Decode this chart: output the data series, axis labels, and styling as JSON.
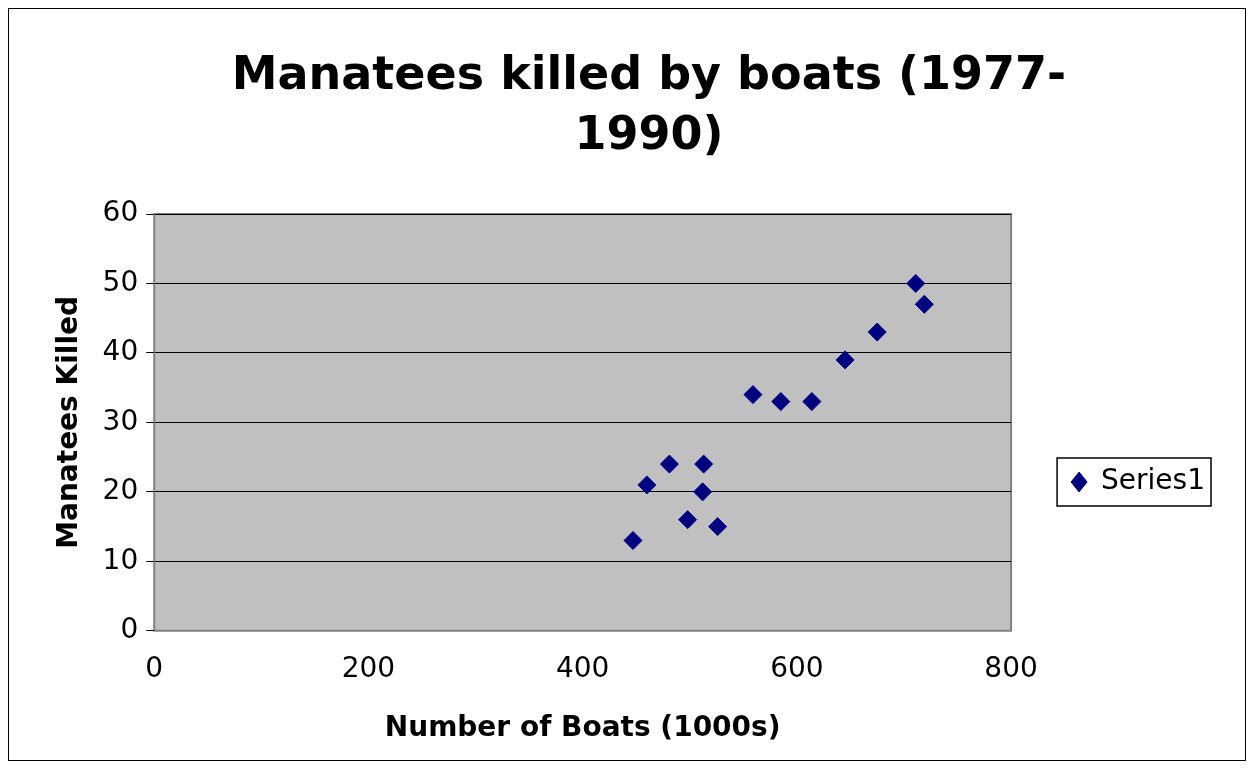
{
  "chart_data": {
    "type": "scatter",
    "title": "Manatees killed by boats (1977-1990)",
    "xlabel": "Number of Boats (1000s)",
    "ylabel": "Manatees Killed",
    "series": [
      {
        "name": "Series1",
        "color": "#000080",
        "x": [
          447,
          460,
          481,
          498,
          513,
          512,
          526,
          559,
          585,
          614,
          645,
          675,
          711,
          719
        ],
        "values": [
          13,
          21,
          24,
          16,
          24,
          20,
          15,
          34,
          33,
          33,
          39,
          43,
          50,
          47
        ]
      }
    ],
    "xlim": [
      0,
      800
    ],
    "xticks": [
      0,
      200,
      400,
      600,
      800
    ],
    "ylim": [
      0,
      60
    ],
    "yticks": [
      0,
      10,
      20,
      30,
      40,
      50,
      60
    ],
    "grid": "y",
    "legend": "right",
    "marker": "diamond"
  }
}
